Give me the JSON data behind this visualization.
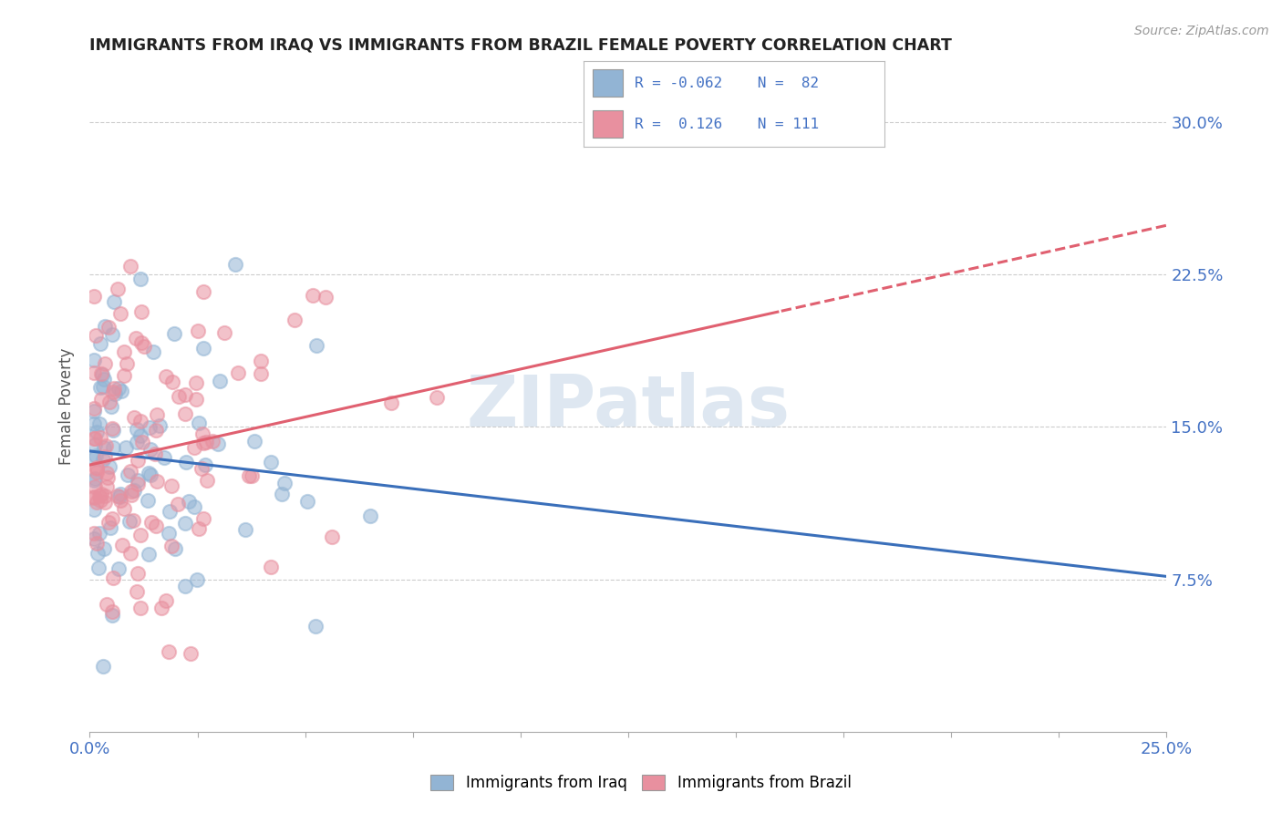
{
  "title": "IMMIGRANTS FROM IRAQ VS IMMIGRANTS FROM BRAZIL FEMALE POVERTY CORRELATION CHART",
  "source": "Source: ZipAtlas.com",
  "ylabel": "Female Poverty",
  "xlim": [
    0.0,
    0.25
  ],
  "ylim": [
    0.0,
    0.32
  ],
  "xtick_positions": [
    0.0,
    0.025,
    0.05,
    0.075,
    0.1,
    0.125,
    0.15,
    0.175,
    0.2,
    0.225,
    0.25
  ],
  "xtick_labels": [
    "0.0%",
    "",
    "",
    "",
    "",
    "",
    "",
    "",
    "",
    "",
    "25.0%"
  ],
  "ytick_positions": [
    0.075,
    0.15,
    0.225,
    0.3
  ],
  "ytick_labels": [
    "7.5%",
    "15.0%",
    "22.5%",
    "30.0%"
  ],
  "iraq_R": -0.062,
  "iraq_N": 82,
  "brazil_R": 0.126,
  "brazil_N": 111,
  "iraq_color": "#92b4d4",
  "brazil_color": "#e8909f",
  "trend_iraq_color": "#3a6fba",
  "trend_brazil_color": "#e06070",
  "watermark": "ZIPatlas",
  "background_color": "#ffffff",
  "grid_color": "#cccccc",
  "tick_color": "#4472c4",
  "legend_text_color": "#4472c4"
}
